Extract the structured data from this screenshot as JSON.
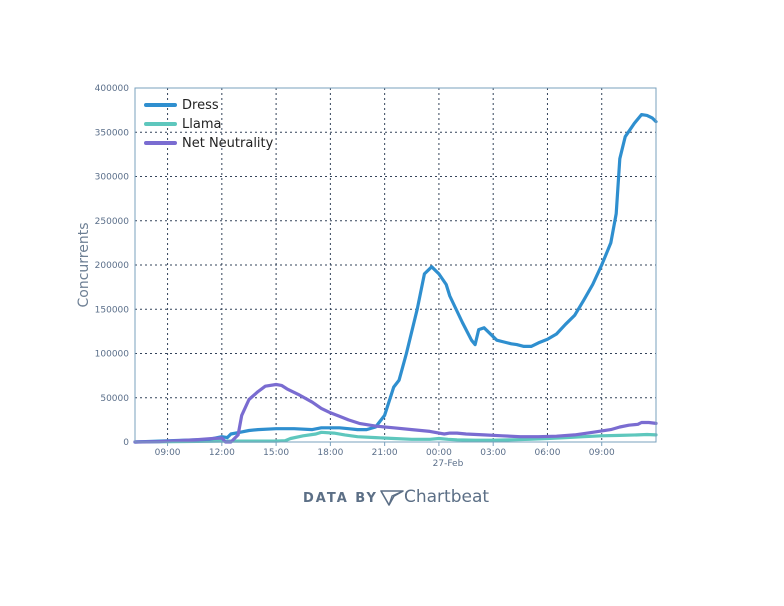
{
  "chart_data": {
    "type": "line",
    "ylabel": "Concurrents",
    "ylim": [
      0,
      400000
    ],
    "yticks": [
      0,
      50000,
      100000,
      150000,
      200000,
      250000,
      300000,
      350000,
      400000
    ],
    "xlim": [
      "07:10",
      "10:40 (27-Feb)"
    ],
    "xtick_labels": [
      "09:00",
      "12:00",
      "15:00",
      "18:00",
      "21:00",
      "00:00",
      "03:00",
      "06:00",
      "09:00"
    ],
    "xtick_hours": [
      9,
      12,
      15,
      18,
      21,
      24,
      27,
      30,
      33
    ],
    "date_label": "27-Feb",
    "grid": true,
    "legend_position": "top-left",
    "series": [
      {
        "name": "Dress",
        "color": "#2f8fcf",
        "points": [
          [
            7.2,
            0
          ],
          [
            11.3,
            3000
          ],
          [
            12.0,
            6000
          ],
          [
            12.3,
            5000
          ],
          [
            12.5,
            9000
          ],
          [
            13.0,
            11000
          ],
          [
            13.5,
            13000
          ],
          [
            14.0,
            14000
          ],
          [
            15.0,
            15000
          ],
          [
            16.0,
            15000
          ],
          [
            17.0,
            14000
          ],
          [
            17.5,
            16000
          ],
          [
            18.5,
            16000
          ],
          [
            19.0,
            15000
          ],
          [
            19.5,
            14000
          ],
          [
            20.0,
            14000
          ],
          [
            20.5,
            17000
          ],
          [
            21.0,
            30000
          ],
          [
            21.5,
            62000
          ],
          [
            21.8,
            70000
          ],
          [
            22.2,
            100000
          ],
          [
            22.8,
            150000
          ],
          [
            23.2,
            190000
          ],
          [
            23.6,
            198000
          ],
          [
            24.0,
            190000
          ],
          [
            24.4,
            178000
          ],
          [
            24.6,
            165000
          ],
          [
            25.3,
            135000
          ],
          [
            25.8,
            115000
          ],
          [
            26.0,
            110000
          ],
          [
            26.2,
            127000
          ],
          [
            26.5,
            129000
          ],
          [
            27.2,
            115000
          ],
          [
            27.6,
            113000
          ],
          [
            28.0,
            111000
          ],
          [
            28.3,
            110000
          ],
          [
            28.7,
            108000
          ],
          [
            29.1,
            108000
          ],
          [
            29.5,
            112000
          ],
          [
            30.0,
            116000
          ],
          [
            30.5,
            122000
          ],
          [
            31.0,
            133000
          ],
          [
            31.5,
            143000
          ],
          [
            32.0,
            160000
          ],
          [
            32.5,
            178000
          ],
          [
            33.0,
            200000
          ],
          [
            33.5,
            225000
          ],
          [
            33.8,
            258000
          ],
          [
            34.0,
            320000
          ],
          [
            34.3,
            345000
          ],
          [
            34.8,
            360000
          ],
          [
            35.2,
            370000
          ],
          [
            35.5,
            369000
          ],
          [
            35.8,
            366000
          ],
          [
            36.0,
            362000
          ]
        ]
      },
      {
        "name": "Llama",
        "color": "#5ec7bd",
        "points": [
          [
            7.2,
            0
          ],
          [
            12.0,
            1000
          ],
          [
            13.0,
            1000
          ],
          [
            14.0,
            1000
          ],
          [
            15.0,
            1000
          ],
          [
            15.5,
            1500
          ],
          [
            15.8,
            4000
          ],
          [
            16.5,
            7000
          ],
          [
            17.2,
            9000
          ],
          [
            17.5,
            11000
          ],
          [
            18.2,
            10000
          ],
          [
            18.8,
            8000
          ],
          [
            19.5,
            6000
          ],
          [
            20.5,
            5000
          ],
          [
            21.5,
            4000
          ],
          [
            22.5,
            3000
          ],
          [
            23.5,
            3000
          ],
          [
            24.0,
            4000
          ],
          [
            24.5,
            3000
          ],
          [
            25.0,
            2500
          ],
          [
            26.0,
            2000
          ],
          [
            27.0,
            2000
          ],
          [
            28.0,
            2500
          ],
          [
            29.0,
            3000
          ],
          [
            30.0,
            4000
          ],
          [
            31.0,
            5000
          ],
          [
            32.0,
            6000
          ],
          [
            33.0,
            7000
          ],
          [
            34.0,
            7500
          ],
          [
            35.0,
            8000
          ],
          [
            35.5,
            8500
          ],
          [
            36.0,
            8000
          ]
        ]
      },
      {
        "name": "Net Neutrality",
        "color": "#7a6cd1",
        "points": [
          [
            7.2,
            0
          ],
          [
            8.5,
            500
          ],
          [
            9.5,
            1500
          ],
          [
            10.5,
            2500
          ],
          [
            11.5,
            4000
          ],
          [
            12.0,
            4500
          ],
          [
            12.2,
            0
          ],
          [
            12.5,
            0
          ],
          [
            12.9,
            8000
          ],
          [
            13.1,
            30000
          ],
          [
            13.5,
            48000
          ],
          [
            14.0,
            57000
          ],
          [
            14.4,
            63000
          ],
          [
            15.0,
            65000
          ],
          [
            15.3,
            64000
          ],
          [
            15.6,
            60000
          ],
          [
            16.3,
            53000
          ],
          [
            17.0,
            45000
          ],
          [
            17.5,
            38000
          ],
          [
            18.0,
            33000
          ],
          [
            18.5,
            29000
          ],
          [
            19.0,
            25000
          ],
          [
            19.6,
            21000
          ],
          [
            20.5,
            18000
          ],
          [
            21.5,
            16000
          ],
          [
            22.5,
            14000
          ],
          [
            23.5,
            12000
          ],
          [
            24.0,
            10000
          ],
          [
            24.3,
            9000
          ],
          [
            24.6,
            10000
          ],
          [
            25.0,
            10000
          ],
          [
            25.5,
            9000
          ],
          [
            26.5,
            8000
          ],
          [
            27.5,
            7000
          ],
          [
            28.5,
            6000
          ],
          [
            29.5,
            6000
          ],
          [
            30.5,
            6500
          ],
          [
            31.5,
            8000
          ],
          [
            32.5,
            11000
          ],
          [
            33.5,
            14000
          ],
          [
            34.0,
            17000
          ],
          [
            34.5,
            19000
          ],
          [
            35.0,
            20000
          ],
          [
            35.2,
            22000
          ],
          [
            35.6,
            22000
          ],
          [
            36.0,
            21000
          ]
        ]
      }
    ]
  },
  "credit": {
    "prefix": "DATA BY",
    "brand": "Chartbeat",
    "logo_icon": "chartbeat-logo-icon",
    "color": "#5c6f86"
  }
}
